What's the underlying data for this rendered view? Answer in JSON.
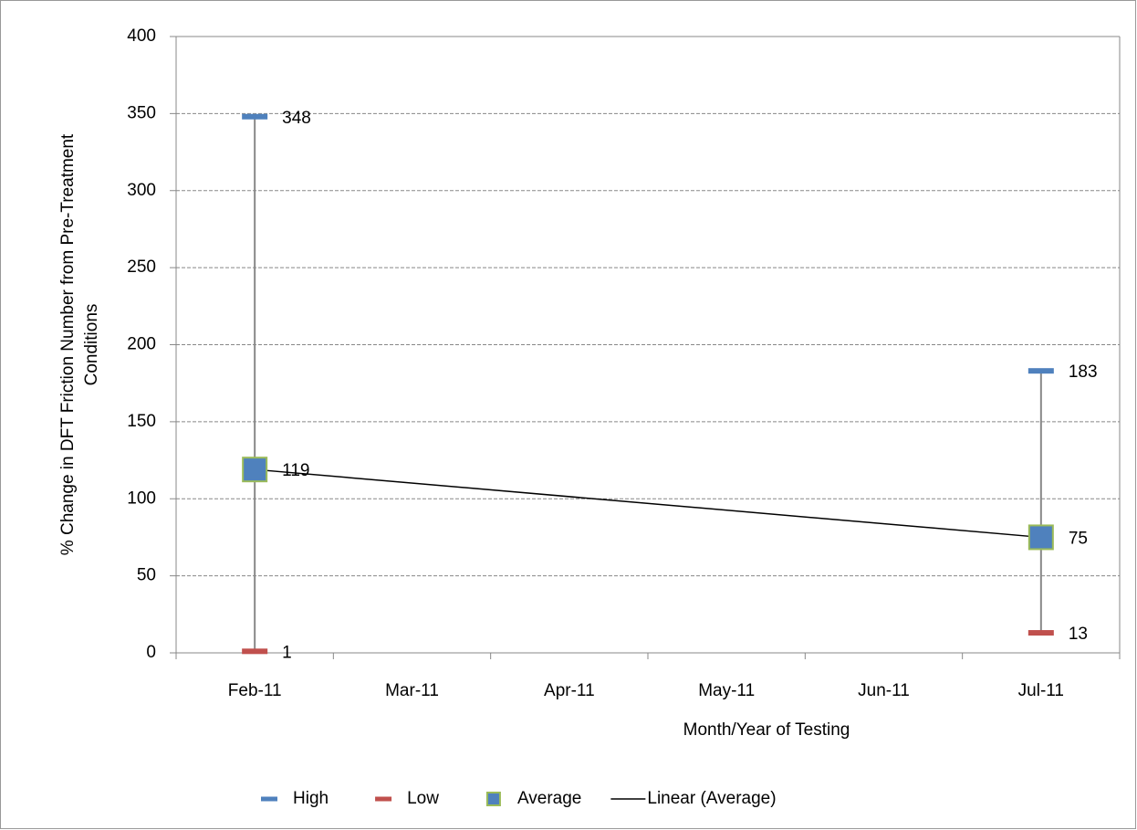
{
  "chart_data": {
    "type": "high-low",
    "x_label": "Month/Year of Testing",
    "y_label": "% Change in DFT Friction Number from Pre-Treatment Conditions",
    "categories": [
      "Feb-11",
      "Mar-11",
      "Apr-11",
      "May-11",
      "Jun-11",
      "Jul-11"
    ],
    "series": [
      {
        "name": "High",
        "color": "#4f81bd",
        "marker": "dash",
        "values": [
          348,
          null,
          null,
          null,
          null,
          183
        ]
      },
      {
        "name": "Low",
        "color": "#c0504d",
        "marker": "dash",
        "values": [
          1,
          null,
          null,
          null,
          null,
          13
        ]
      },
      {
        "name": "Average",
        "color": "#4f81bd",
        "edge_color": "#9bbb59",
        "marker": "square",
        "values": [
          119,
          null,
          null,
          null,
          null,
          75
        ]
      }
    ],
    "trendline": {
      "name": "Linear (Average)",
      "of": "Average",
      "kind": "linear",
      "color": "#000000"
    },
    "high_low_line_color": "#888888",
    "ylim": [
      0,
      400
    ],
    "yticks": [
      0,
      50,
      100,
      150,
      200,
      250,
      300,
      350,
      400
    ],
    "grid": true,
    "legend": "bottom"
  }
}
